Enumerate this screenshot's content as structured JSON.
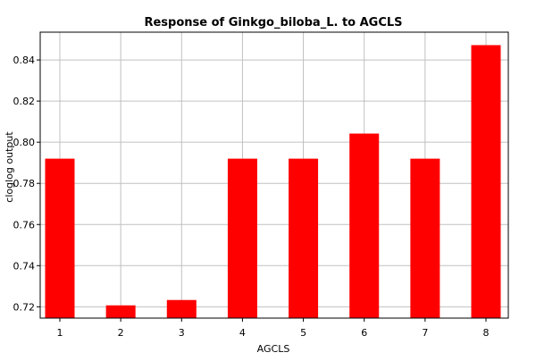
{
  "chart_data": {
    "type": "bar",
    "title": "Response of Ginkgo_biloba_L. to AGCLS",
    "xlabel": "AGCLS",
    "ylabel": "cloglog output",
    "categories": [
      "1",
      "2",
      "3",
      "4",
      "5",
      "6",
      "7",
      "8"
    ],
    "values": [
      0.792,
      0.7207,
      0.7233,
      0.792,
      0.792,
      0.8042,
      0.792,
      0.8472
    ],
    "ylim": [
      0.7145,
      0.8535
    ],
    "yticks": [
      0.72,
      0.74,
      0.76,
      0.78,
      0.8,
      0.82,
      0.84
    ],
    "ytick_labels": [
      "0.72",
      "0.74",
      "0.76",
      "0.78",
      "0.80",
      "0.82",
      "0.84"
    ],
    "bar_color": "#ff0000",
    "grid": true,
    "grid_color": "#c0c0c0",
    "legend": "none"
  }
}
